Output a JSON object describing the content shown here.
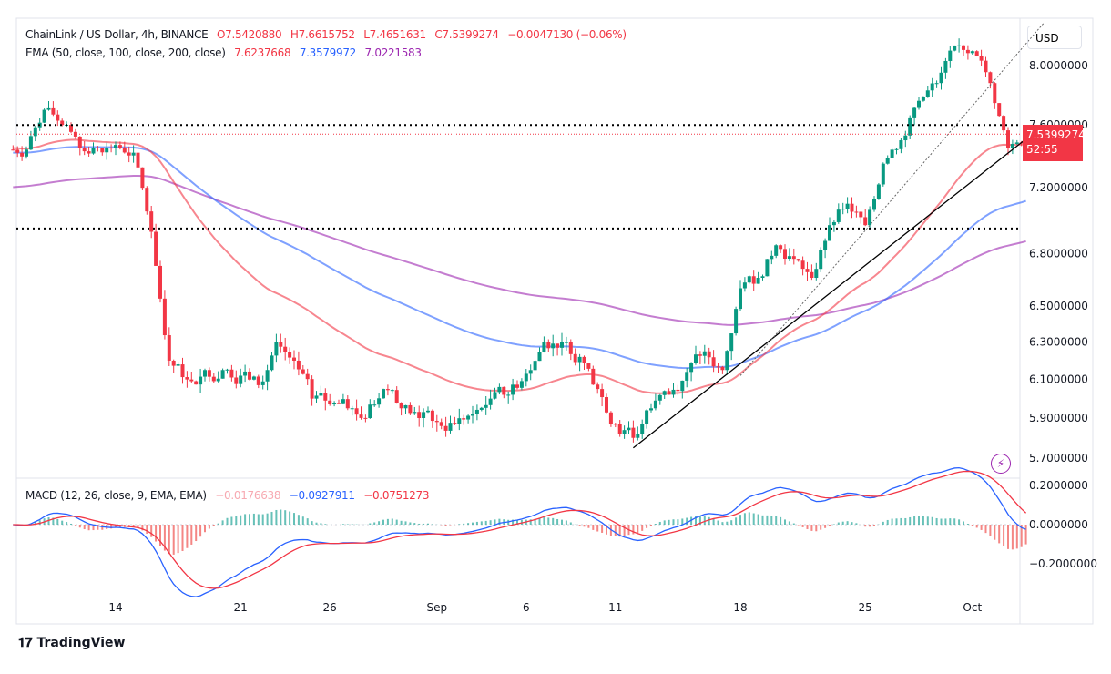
{
  "header": {
    "symbol": "ChainLink / US Dollar, 4h, BINANCE",
    "open": "O7.5420880",
    "high": "H7.6615752",
    "low": "L7.4651631",
    "close": "C7.5399274",
    "change": "−0.0047130 (−0.06%)"
  },
  "ema_legend": {
    "label": "EMA (50, close, 100, close, 200, close)",
    "ema50": "7.6237668",
    "ema100": "7.3579972",
    "ema200": "7.0221583"
  },
  "macd_legend": {
    "label": "MACD (12, 26, close, 9, EMA, EMA)",
    "hist": "−0.0176638",
    "macd": "−0.0927911",
    "signal": "−0.0751273"
  },
  "currency": "USD",
  "price_tag": {
    "price": "7.5399274",
    "countdown": "52:55"
  },
  "branding": "TradingView",
  "colors": {
    "up": "#089981",
    "down": "#f23645",
    "ema50": "#f23645",
    "ema100": "#2962ff",
    "ema200": "#9c27b0"
  },
  "chart_data": {
    "type": "candlestick",
    "scale": "log",
    "grid": false,
    "y_ticks": [
      "8.0000000",
      "7.6000000",
      "7.2000000",
      "6.8000000",
      "6.5000000",
      "6.3000000",
      "6.1000000",
      "5.9000000",
      "5.7000000"
    ],
    "x_ticks": [
      "14",
      "21",
      "26",
      "Sep",
      "6",
      "11",
      "18",
      "25",
      "Oct"
    ],
    "macd_ticks": [
      "0.2000000",
      "0.0000000",
      "−0.2000000"
    ],
    "dates": [
      "Aug 9",
      "Aug 10",
      "Aug 11",
      "Aug 12",
      "Aug 13",
      "Aug 14",
      "Aug 15",
      "Aug 16",
      "Aug 17",
      "Aug 18",
      "Aug 19",
      "Aug 20",
      "Aug 21",
      "Aug 22",
      "Aug 23",
      "Aug 24",
      "Aug 25",
      "Aug 26",
      "Aug 27",
      "Aug 28",
      "Aug 29",
      "Aug 30",
      "Aug 31",
      "Sep 1",
      "Sep 2",
      "Sep 3",
      "Sep 4",
      "Sep 5",
      "Sep 6",
      "Sep 7",
      "Sep 8",
      "Sep 9",
      "Sep 10",
      "Sep 11",
      "Sep 12",
      "Sep 13",
      "Sep 14",
      "Sep 15",
      "Sep 16",
      "Sep 17",
      "Sep 18",
      "Sep 19",
      "Sep 20",
      "Sep 21",
      "Sep 22",
      "Sep 23",
      "Sep 24",
      "Sep 25",
      "Sep 26",
      "Sep 27",
      "Sep 28",
      "Sep 29",
      "Sep 30",
      "Oct 1",
      "Oct 2",
      "Oct 3",
      "Oct 4"
    ],
    "closes": [
      7.44,
      7.7,
      7.6,
      7.45,
      7.45,
      7.47,
      7.42,
      6.93,
      6.2,
      6.1,
      6.15,
      6.15,
      6.12,
      6.07,
      6.3,
      6.2,
      6.0,
      5.97,
      5.95,
      5.9,
      6.05,
      5.95,
      5.9,
      5.88,
      5.87,
      5.92,
      6.0,
      6.02,
      6.13,
      6.3,
      6.3,
      6.22,
      6.05,
      5.87,
      5.8,
      5.95,
      6.02,
      6.14,
      6.25,
      6.15,
      6.6,
      6.66,
      6.85,
      6.77,
      6.66,
      6.97,
      7.1,
      6.97,
      7.35,
      7.5,
      7.76,
      7.88,
      8.14,
      8.1,
      7.88,
      7.45,
      7.54
    ],
    "levels": [
      7.6,
      6.95
    ],
    "trendline": {
      "from": [
        "Sep 12",
        5.75
      ],
      "to": [
        "Oct 5",
        7.6
      ]
    },
    "channel_line": {
      "from": [
        "Sep 18",
        6.12
      ],
      "to": [
        "Oct 5",
        8.3
      ]
    },
    "current_price": 7.5399274
  }
}
